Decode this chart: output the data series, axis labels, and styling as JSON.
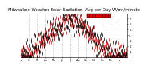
{
  "title": "Milwaukee Weather Solar Radiation  Avg per Day W/m²/minute",
  "title_fontsize": 3.8,
  "background_color": "#ffffff",
  "plot_bg_color": "#ffffff",
  "grid_color": "#b0b0b0",
  "ylim": [
    0,
    8
  ],
  "yticks": [
    1,
    2,
    3,
    4,
    5,
    6,
    7
  ],
  "ytick_fontsize": 3.0,
  "xtick_fontsize": 2.5,
  "black_color": "#000000",
  "red_color": "#ff0000",
  "legend_box_color": "#dd0000",
  "num_months": 13,
  "days_per_month": 30,
  "seed": 7
}
